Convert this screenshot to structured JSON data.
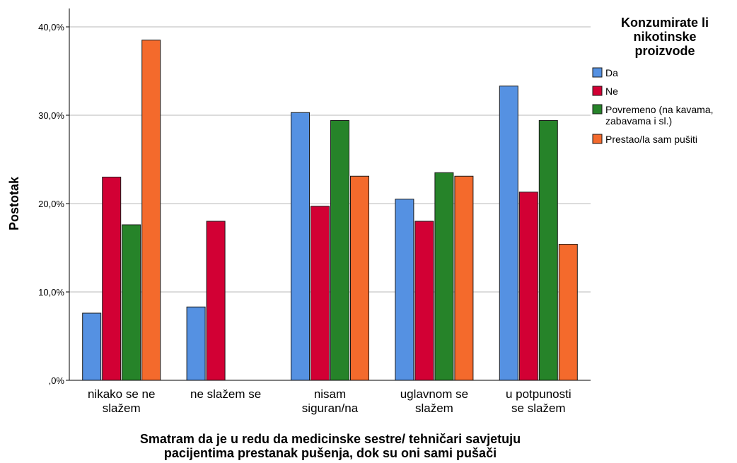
{
  "chart_data": {
    "type": "bar",
    "categories": [
      [
        "nikako se ne",
        "slažem"
      ],
      [
        "ne slažem se"
      ],
      [
        "nisam",
        "siguran/na"
      ],
      [
        "uglavnom se",
        "slažem"
      ],
      [
        "u potpunosti",
        "se slažem"
      ]
    ],
    "series": [
      {
        "name": "Da",
        "color": "#5591e2",
        "values": [
          7.6,
          8.3,
          30.3,
          20.5,
          33.3
        ]
      },
      {
        "name": "Ne",
        "color": "#d20034",
        "values": [
          23.0,
          18.0,
          19.7,
          18.0,
          21.3
        ]
      },
      {
        "name": "Povremeno (na kavama, zabavama i sl.)",
        "legend_lines": [
          "Povremeno (na kavama,",
          "zabavama i sl.)"
        ],
        "color": "#268329",
        "values": [
          17.6,
          0,
          29.4,
          23.5,
          29.4
        ]
      },
      {
        "name": "Prestao/la sam pušiti",
        "color": "#f46a2c",
        "values": [
          38.5,
          0,
          23.1,
          23.1,
          15.4
        ]
      }
    ],
    "ylabel": "Postotak",
    "xlabel": [
      "Smatram da je u redu da medicinske sestre/ tehničari savjetuju",
      "pacijentima prestanak pušenja, dok su oni sami pušači"
    ],
    "ylim": [
      0,
      40
    ],
    "yticks": [
      0,
      10,
      20,
      30,
      40
    ],
    "ytick_labels": [
      ",0%",
      "10,0%",
      "20,0%",
      "30,0%",
      "40,0%"
    ],
    "legend": {
      "title": [
        "Konzumirate li",
        "nikotinske",
        "proizvode"
      ],
      "placement": "right"
    },
    "grid": true
  }
}
